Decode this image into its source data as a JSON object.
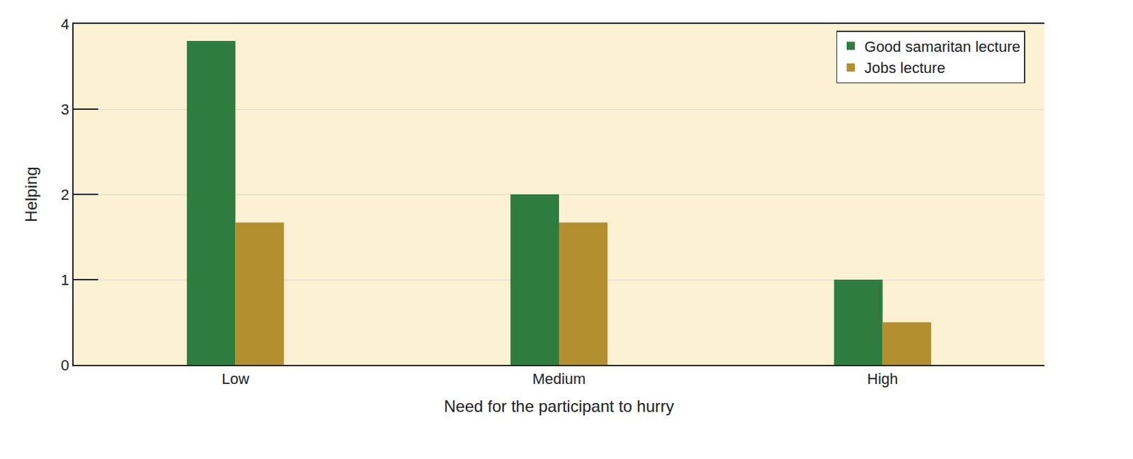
{
  "chart_data": {
    "type": "bar",
    "categories": [
      "Low",
      "Medium",
      "High"
    ],
    "series": [
      {
        "name": "Good samaritan lecture",
        "color": "#2e7d3e",
        "values": [
          3.8,
          2.0,
          1.0
        ]
      },
      {
        "name": "Jobs lecture",
        "color": "#b38f30",
        "values": [
          1.67,
          1.67,
          0.5
        ]
      }
    ],
    "xlabel": "Need for the participant to hurry",
    "ylabel": "Helping",
    "ylim": [
      0,
      4
    ],
    "yticks": [
      0,
      1,
      2,
      3,
      4
    ],
    "grid": true,
    "legend": "top right"
  }
}
